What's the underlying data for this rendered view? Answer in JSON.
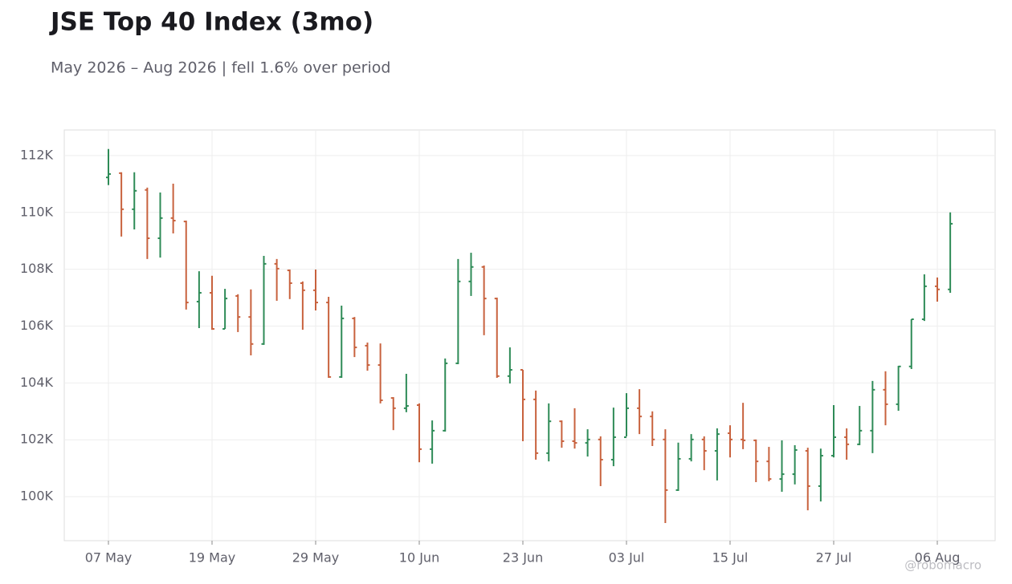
{
  "chart_data": {
    "type": "ohlc",
    "title": "JSE Top 40 Index (3mo)",
    "subtitle": "May 2026 – Aug 2026 | fell 1.6% over period",
    "watermark": "@robomacro",
    "categories": [
      "07 May",
      null,
      null,
      null,
      null,
      null,
      null,
      null,
      "19 May",
      null,
      null,
      null,
      null,
      null,
      null,
      null,
      "29 May",
      null,
      null,
      null,
      null,
      null,
      null,
      null,
      "10 Jun",
      null,
      null,
      null,
      null,
      null,
      null,
      null,
      "23 Jun",
      null,
      null,
      null,
      null,
      null,
      null,
      null,
      "03 Jul",
      null,
      null,
      null,
      null,
      null,
      null,
      null,
      "15 Jul",
      null,
      null,
      null,
      null,
      null,
      null,
      null,
      "27 Jul",
      null,
      null,
      null,
      null,
      null,
      null,
      null,
      "06 Aug",
      null
    ],
    "open": [
      111230,
      111380,
      110110,
      110790,
      109090,
      109800,
      109680,
      106860,
      107170,
      105900,
      107060,
      106320,
      105370,
      108190,
      107960,
      107510,
      107260,
      106830,
      104210,
      106270,
      105310,
      104630,
      103470,
      103110,
      103220,
      101670,
      102320,
      104690,
      107570,
      108080,
      106970,
      104240,
      104460,
      103420,
      101530,
      102650,
      101950,
      101890,
      102010,
      101300,
      102090,
      103110,
      102820,
      102010,
      100230,
      101330,
      102010,
      101610,
      102230,
      102010,
      101980,
      101240,
      100620,
      100790,
      101610,
      100370,
      101440,
      102090,
      101840,
      102320,
      103760,
      103250,
      104580,
      106240,
      107400,
      107290
    ],
    "high": [
      112230,
      111410,
      111410,
      110870,
      110700,
      111010,
      109710,
      107930,
      107770,
      107310,
      107120,
      107290,
      108470,
      108360,
      107990,
      107570,
      107990,
      107030,
      106720,
      106320,
      105420,
      105390,
      103500,
      104320,
      103280,
      102680,
      104860,
      108360,
      108580,
      108130,
      107000,
      105250,
      104460,
      103730,
      103280,
      102680,
      103110,
      102370,
      102120,
      103130,
      103640,
      103780,
      103000,
      102370,
      101900,
      102200,
      102120,
      102400,
      102510,
      103300,
      102010,
      101750,
      101980,
      101810,
      101720,
      101690,
      103220,
      102400,
      103190,
      104070,
      104410,
      104600,
      106240,
      107820,
      107710,
      110000
    ],
    "low": [
      110960,
      109150,
      109400,
      108360,
      108410,
      109260,
      106580,
      105930,
      105870,
      105900,
      105790,
      104970,
      105340,
      106890,
      106950,
      105870,
      106550,
      104180,
      104180,
      104910,
      104430,
      103280,
      102340,
      102970,
      101210,
      101160,
      102290,
      104660,
      107060,
      105680,
      104180,
      103980,
      101950,
      101300,
      101240,
      101720,
      101690,
      101410,
      100370,
      101070,
      102120,
      102200,
      101780,
      99070,
      100200,
      101240,
      100930,
      100570,
      101380,
      101670,
      100510,
      100540,
      100170,
      100430,
      99520,
      99830,
      101380,
      101300,
      101810,
      101530,
      102510,
      103020,
      104490,
      106180,
      106860,
      107170
    ],
    "close": [
      111350,
      110110,
      110760,
      109090,
      109800,
      109710,
      106830,
      107170,
      105900,
      106970,
      106320,
      105370,
      108190,
      108020,
      107510,
      107260,
      106830,
      104210,
      106270,
      105250,
      104630,
      103390,
      103110,
      103190,
      101670,
      102320,
      104690,
      107570,
      108080,
      106970,
      104240,
      104460,
      103420,
      101530,
      102650,
      101950,
      101890,
      102010,
      101300,
      102090,
      103110,
      102820,
      102010,
      100230,
      101330,
      102010,
      101610,
      102200,
      102010,
      101980,
      101240,
      100620,
      100790,
      101640,
      100370,
      101440,
      102090,
      101840,
      102320,
      103760,
      103250,
      104580,
      106240,
      107400,
      107290,
      109600
    ],
    "up_color": "#2e8b57",
    "down_color": "#c8623e",
    "ylim": [
      98450,
      112900
    ],
    "yticks": [
      {
        "value": 100000,
        "label": "100K"
      },
      {
        "value": 102000,
        "label": "102K"
      },
      {
        "value": 104000,
        "label": "104K"
      },
      {
        "value": 106000,
        "label": "106K"
      },
      {
        "value": 108000,
        "label": "108K"
      },
      {
        "value": 110000,
        "label": "110K"
      },
      {
        "value": 112000,
        "label": "112K"
      }
    ],
    "grid": true
  }
}
